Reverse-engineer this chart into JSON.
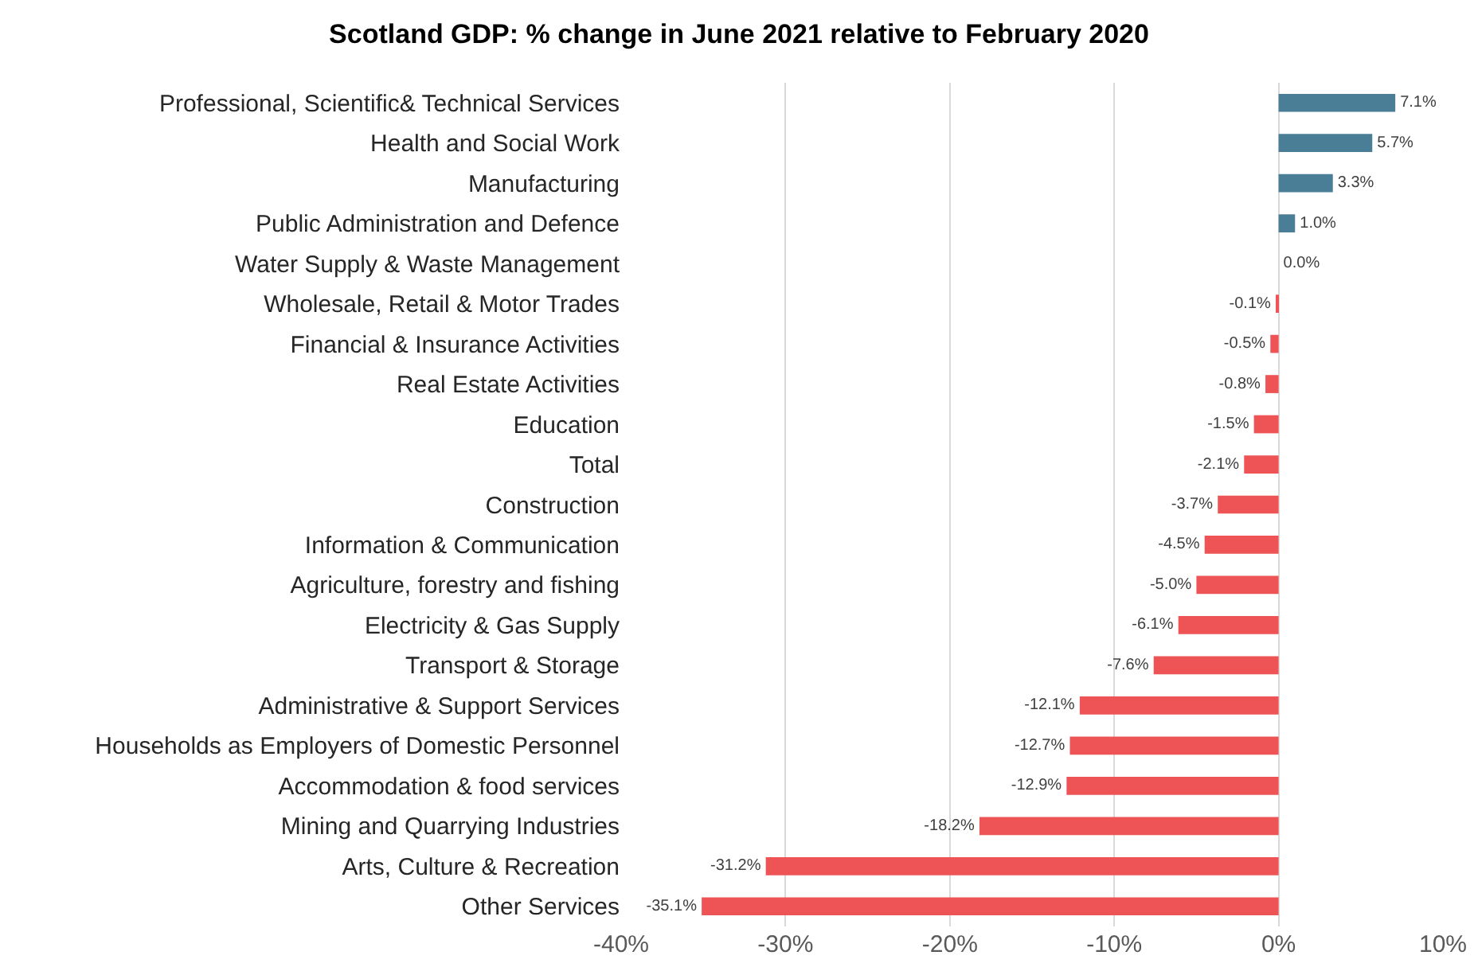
{
  "chart_data": {
    "type": "bar",
    "orientation": "horizontal",
    "title": "Scotland GDP: % change in June 2021 relative to February 2020",
    "categories": [
      "Professional, Scientific& Technical Services",
      "Health and Social Work",
      "Manufacturing",
      "Public Administration and Defence",
      "Water Supply & Waste Management",
      "Wholesale, Retail & Motor Trades",
      "Financial & Insurance Activities",
      "Real Estate Activities",
      "Education",
      "Total",
      "Construction",
      "Information & Communication",
      "Agriculture, forestry and fishing",
      "Electricity & Gas Supply",
      "Transport & Storage",
      "Administrative & Support Services",
      "Households as Employers of Domestic Personnel",
      "Accommodation & food services",
      "Mining and Quarrying Industries",
      "Arts, Culture & Recreation",
      "Other Services"
    ],
    "values": [
      7.1,
      5.7,
      3.3,
      1.0,
      0.0,
      -0.1,
      -0.5,
      -0.8,
      -1.5,
      -2.1,
      -3.7,
      -4.5,
      -5.0,
      -6.1,
      -7.6,
      -12.1,
      -12.7,
      -12.9,
      -18.2,
      -31.2,
      -35.1
    ],
    "value_labels": [
      "7.1%",
      "5.7%",
      "3.3%",
      "1.0%",
      "0.0%",
      "-0.1%",
      "-0.5%",
      "-0.8%",
      "-1.5%",
      "-2.1%",
      "-3.7%",
      "-4.5%",
      "-5.0%",
      "-6.1%",
      "-7.6%",
      "-12.1%",
      "-12.7%",
      "-12.9%",
      "-18.2%",
      "-31.2%",
      "-35.1%"
    ],
    "colors": [
      "#4a7d96",
      "#4a7d96",
      "#4a7d96",
      "#4a7d96",
      "#4a7d96",
      "#ee5455",
      "#ee5455",
      "#ee5455",
      "#ee5455",
      "#ee5455",
      "#ee5455",
      "#ee5455",
      "#ee5455",
      "#ee5455",
      "#ee5455",
      "#ee5455",
      "#ee5455",
      "#ee5455",
      "#ee5455",
      "#ee5455",
      "#ee5455"
    ],
    "xlim": [
      -40,
      10
    ],
    "xticks": [
      {
        "value": -40,
        "label": "-40%"
      },
      {
        "value": -30,
        "label": "-30%"
      },
      {
        "value": -20,
        "label": "-20%"
      },
      {
        "value": -10,
        "label": "-10%"
      },
      {
        "value": 0,
        "label": "0%"
      },
      {
        "value": 10,
        "label": "10%"
      }
    ],
    "grid": "x"
  }
}
